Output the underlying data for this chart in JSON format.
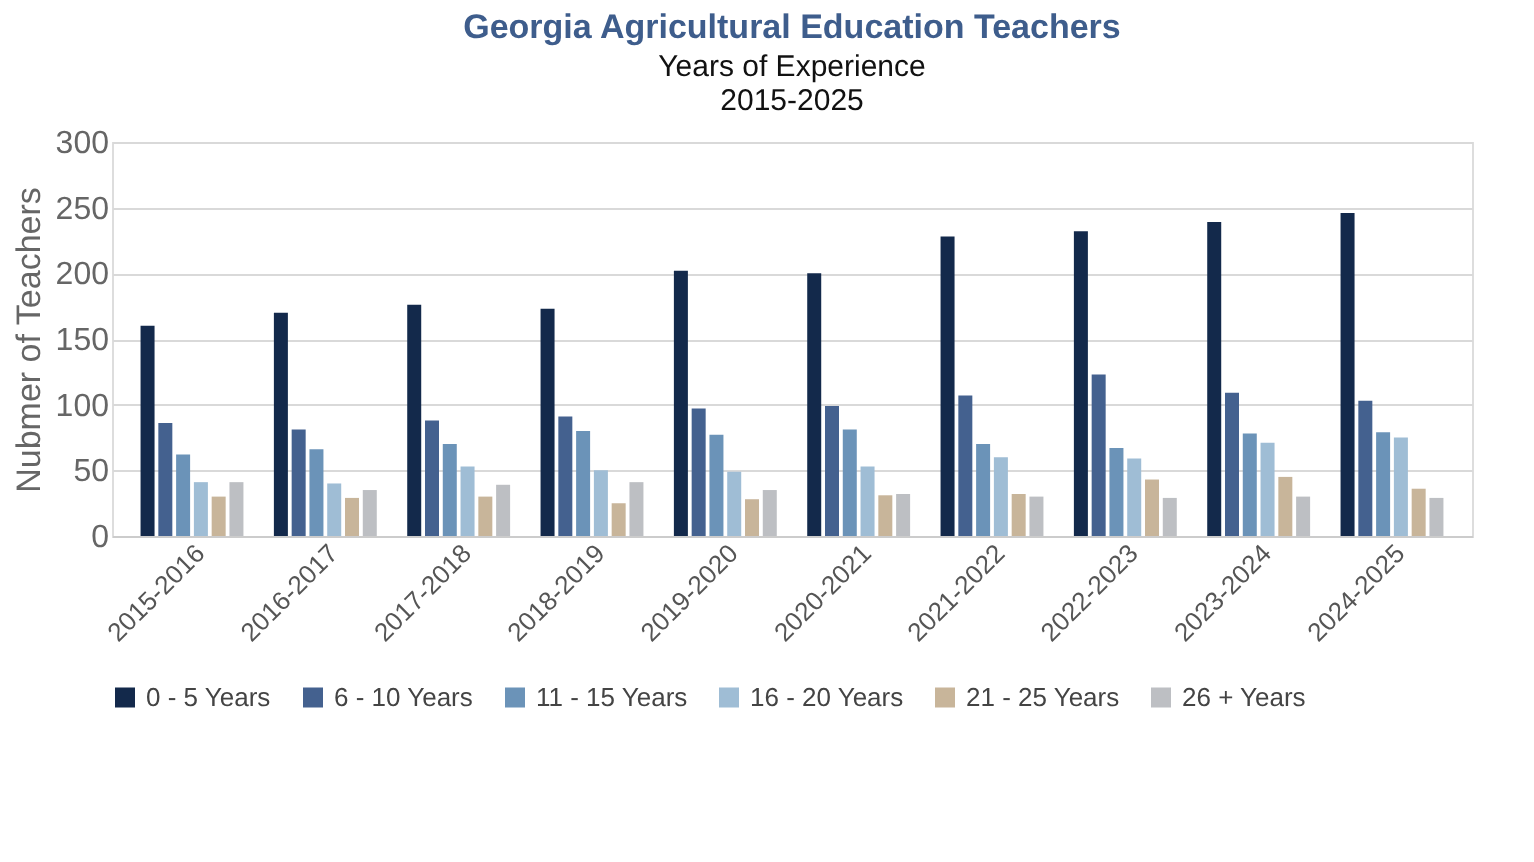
{
  "chart_data": {
    "type": "bar",
    "title": "Georgia Agricultural Education Teachers",
    "subtitle": [
      "Years of Experience",
      "2015-2025"
    ],
    "ylabel": "Nubmer of Teachers",
    "categories": [
      "2015-2016",
      "2016-2017",
      "2017-2018",
      "2018-2019",
      "2019-2020",
      "2020-2021",
      "2021-2022",
      "2022-2023",
      "2023-2024",
      "2024-2025"
    ],
    "series": [
      {
        "name": "0 - 5 Years",
        "color": "#13294b",
        "values": [
          160,
          170,
          176,
          173,
          202,
          200,
          228,
          232,
          239,
          246
        ]
      },
      {
        "name": "6 - 10 Years",
        "color": "#44618f",
        "values": [
          86,
          81,
          88,
          91,
          97,
          99,
          107,
          123,
          109,
          103
        ]
      },
      {
        "name": "11 - 15 Years",
        "color": "#6b93b8",
        "values": [
          62,
          66,
          70,
          80,
          77,
          81,
          70,
          67,
          78,
          79
        ]
      },
      {
        "name": "16 - 20 Years",
        "color": "#9fbdd5",
        "values": [
          41,
          40,
          53,
          50,
          49,
          53,
          60,
          59,
          71,
          75
        ]
      },
      {
        "name": "21 - 25 Years",
        "color": "#c8b59a",
        "values": [
          30,
          29,
          30,
          25,
          28,
          31,
          32,
          43,
          45,
          36
        ]
      },
      {
        "name": "26 + Years",
        "color": "#bdbfc3",
        "values": [
          41,
          35,
          39,
          41,
          35,
          32,
          30,
          29,
          30,
          29
        ]
      }
    ],
    "ylim": [
      0,
      300
    ],
    "yticks": [
      0,
      50,
      100,
      150,
      200,
      250,
      300
    ],
    "grid": "y",
    "legend": "bottom"
  }
}
